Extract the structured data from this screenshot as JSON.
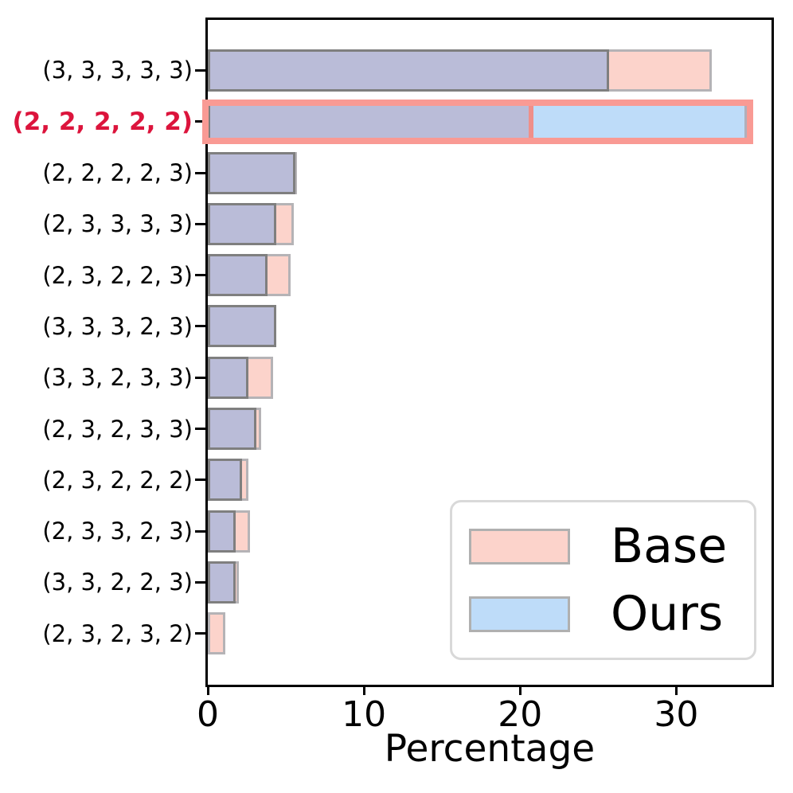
{
  "chart_data": {
    "type": "bar",
    "orientation": "horizontal",
    "xlabel": "Percentage",
    "ylabel": "",
    "title": "",
    "xlim": [
      0,
      36.1
    ],
    "xticks": [
      0,
      10,
      20,
      30
    ],
    "grid": false,
    "legend_position": "lower right",
    "categories": [
      "(3, 3, 3, 3, 3)",
      "(2, 2, 2, 2, 2)",
      "(2, 2, 2, 2, 3)",
      "(2, 3, 3, 3, 3)",
      "(2, 3, 2, 2, 3)",
      "(3, 3, 3, 2, 3)",
      "(3, 3, 2, 3, 3)",
      "(2, 3, 2, 3, 3)",
      "(2, 3, 2, 2, 2)",
      "(2, 3, 3, 2, 3)",
      "(3, 3, 2, 2, 3)",
      "(2, 3, 2, 3, 2)"
    ],
    "series": [
      {
        "name": "Base",
        "color": "#fcd3cb",
        "values": [
          32.3,
          20.7,
          5.7,
          5.5,
          5.3,
          4.4,
          4.2,
          3.4,
          2.6,
          2.7,
          2.0,
          1.1
        ]
      },
      {
        "name": "Ours",
        "color": "#bedcf9",
        "values": [
          25.7,
          34.5,
          5.6,
          4.4,
          3.8,
          4.4,
          2.6,
          3.1,
          2.2,
          1.8,
          1.8,
          0.0
        ]
      }
    ],
    "overlap_color": "#babcd8",
    "highlighted_category": "(2, 2, 2, 2, 2)",
    "highlighted_index": 1,
    "highlight_box_color": "#f99a94",
    "highlight_label_color": "#dc143c"
  },
  "legend": {
    "items": [
      {
        "label": "Base",
        "color": "#fcd3cb"
      },
      {
        "label": "Ours",
        "color": "#bedcf9"
      }
    ]
  },
  "axis": {
    "xlabel": "Percentage",
    "xtick_labels": [
      "0",
      "10",
      "20",
      "30"
    ]
  }
}
